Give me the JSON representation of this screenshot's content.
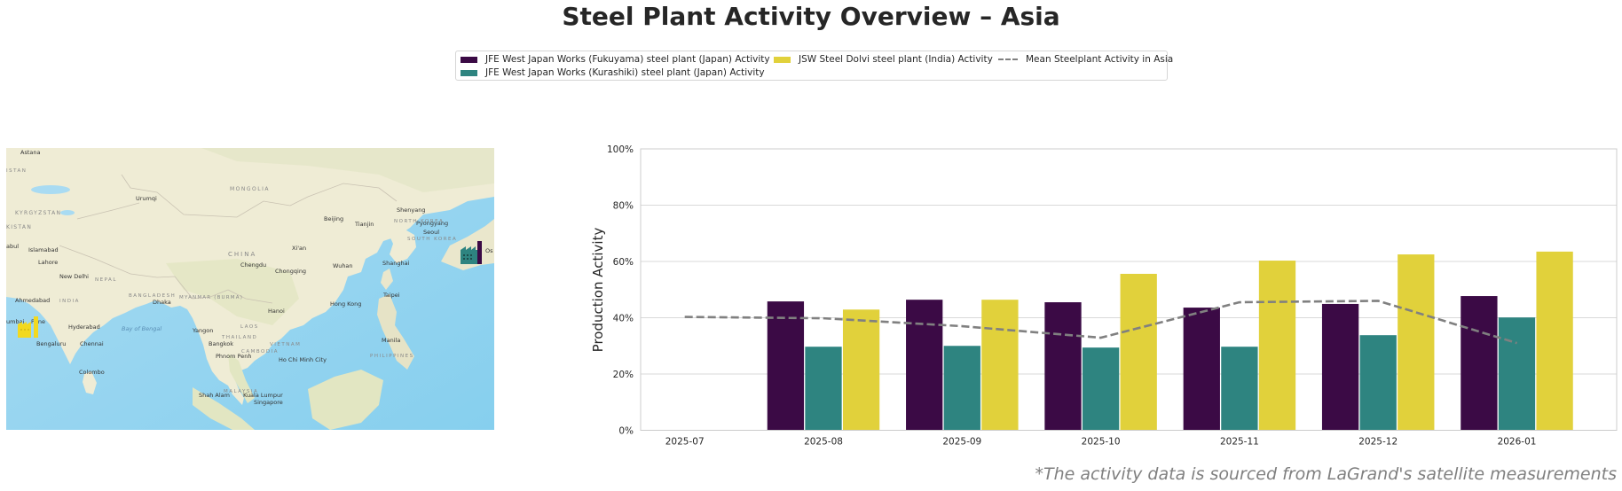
{
  "title": "Steel Plant Activity Overview – Asia",
  "legend": [
    {
      "label": "JFE West Japan Works (Fukuyama) steel plant (Japan) Activity",
      "color": "#3b0a45",
      "kind": "bar"
    },
    {
      "label": "JFE West Japan Works (Kurashiki) steel plant (Japan) Activity",
      "color": "#2e8480",
      "kind": "bar"
    },
    {
      "label": "JSW Steel Dolvi steel plant (India) Activity",
      "color": "#e1d13b",
      "kind": "bar"
    },
    {
      "label": "Mean Steelplant Activity in Asia",
      "color": "#808080",
      "kind": "dashed-line"
    }
  ],
  "map": {
    "labels": [
      {
        "text": "Astana",
        "kind": "city"
      },
      {
        "text": "ISTAN",
        "kind": "country"
      },
      {
        "text": "Urumqi",
        "kind": "city"
      },
      {
        "text": "MONGOLIA",
        "kind": "country"
      },
      {
        "text": "KYRGYZSTAN",
        "kind": "country"
      },
      {
        "text": "KISTAN",
        "kind": "country"
      },
      {
        "text": "Shenyang",
        "kind": "city"
      },
      {
        "text": "NORTH KOREA",
        "kind": "country"
      },
      {
        "text": "Pyongyang",
        "kind": "city"
      },
      {
        "text": "Beijing",
        "kind": "city"
      },
      {
        "text": "Tianjin",
        "kind": "city"
      },
      {
        "text": "Seoul",
        "kind": "city"
      },
      {
        "text": "SOUTH KOREA",
        "kind": "country"
      },
      {
        "text": "abul",
        "kind": "city"
      },
      {
        "text": "Islamabad",
        "kind": "city"
      },
      {
        "text": "CHINA",
        "kind": "country"
      },
      {
        "text": "Xi'an",
        "kind": "city"
      },
      {
        "text": "Lahore",
        "kind": "city"
      },
      {
        "text": "Chengdu",
        "kind": "city"
      },
      {
        "text": "Wuhan",
        "kind": "city"
      },
      {
        "text": "Shanghai",
        "kind": "city"
      },
      {
        "text": "Chongqing",
        "kind": "city"
      },
      {
        "text": "New Delhi",
        "kind": "city"
      },
      {
        "text": "NEPAL",
        "kind": "country"
      },
      {
        "text": "Os",
        "kind": "city"
      },
      {
        "text": "Ahmedabad",
        "kind": "city"
      },
      {
        "text": "INDIA",
        "kind": "country"
      },
      {
        "text": "BANGLADESH",
        "kind": "country"
      },
      {
        "text": "Dhaka",
        "kind": "city"
      },
      {
        "text": "MYANMAR (BURMA)",
        "kind": "country"
      },
      {
        "text": "Taipei",
        "kind": "city"
      },
      {
        "text": "Hong Kong",
        "kind": "city"
      },
      {
        "text": "Hanoi",
        "kind": "city"
      },
      {
        "text": "umbai",
        "kind": "city"
      },
      {
        "text": "Pune",
        "kind": "city"
      },
      {
        "text": "Hyderabad",
        "kind": "city"
      },
      {
        "text": "Bay of Bengal",
        "kind": "water"
      },
      {
        "text": "Yangon",
        "kind": "city"
      },
      {
        "text": "LAOS",
        "kind": "country"
      },
      {
        "text": "THAILAND",
        "kind": "country"
      },
      {
        "text": "Manila",
        "kind": "city"
      },
      {
        "text": "Bengaluru",
        "kind": "city"
      },
      {
        "text": "Chennai",
        "kind": "city"
      },
      {
        "text": "Bangkok",
        "kind": "city"
      },
      {
        "text": "VIETNAM",
        "kind": "country"
      },
      {
        "text": "CAMBODIA",
        "kind": "country"
      },
      {
        "text": "Phnom Penh",
        "kind": "city"
      },
      {
        "text": "Ho Chi Minh City",
        "kind": "city"
      },
      {
        "text": "PHILIPPINES",
        "kind": "country"
      },
      {
        "text": "Colombo",
        "kind": "city"
      },
      {
        "text": "MALAYSIA",
        "kind": "country"
      },
      {
        "text": "Shah Alam",
        "kind": "city"
      },
      {
        "text": "Kuala Lumpur",
        "kind": "city"
      },
      {
        "text": "Singapore",
        "kind": "city"
      }
    ],
    "markers": [
      {
        "name": "JFE West Japan Works (Fukuyama / Kurashiki)",
        "icon": "factory-icon",
        "colors": [
          "#3b0a45",
          "#2e8480"
        ]
      },
      {
        "name": "JSW Steel Dolvi",
        "icon": "factory-icon",
        "colors": [
          "#e1d13b"
        ]
      }
    ]
  },
  "chart_data": {
    "type": "bar",
    "title": "",
    "xlabel": "",
    "ylabel": "Production Activity",
    "ylim": [
      0,
      100
    ],
    "yticks": [
      "0%",
      "20%",
      "40%",
      "60%",
      "80%",
      "100%"
    ],
    "ytick_values": [
      0,
      20,
      40,
      60,
      80,
      100
    ],
    "grid": true,
    "categories": [
      "2025-07",
      "2025-08",
      "2025-09",
      "2025-10",
      "2025-11",
      "2025-12",
      "2026-01"
    ],
    "series": [
      {
        "name": "JFE West Japan Works (Fukuyama) steel plant (Japan) Activity",
        "color": "#3b0a45",
        "values": [
          null,
          45.8,
          46.4,
          45.5,
          43.6,
          44.9,
          47.7
        ]
      },
      {
        "name": "JFE West Japan Works (Kurashiki) steel plant (Japan) Activity",
        "color": "#2e8480",
        "values": [
          null,
          29.7,
          30.0,
          29.4,
          29.7,
          33.8,
          40.1
        ]
      },
      {
        "name": "JSW Steel Dolvi steel plant (India) Activity",
        "color": "#e1d13b",
        "values": [
          null,
          42.9,
          46.4,
          55.6,
          60.3,
          62.5,
          63.5
        ]
      }
    ],
    "line": {
      "name": "Mean Steelplant Activity in Asia",
      "color": "#808080",
      "style": "dashed",
      "values": [
        40.3,
        39.8,
        37.0,
        32.9,
        45.5,
        46.0,
        31.0
      ]
    },
    "legend_position": "top-center"
  },
  "footer": "*The activity data is sourced from LaGrand's satellite measurements"
}
